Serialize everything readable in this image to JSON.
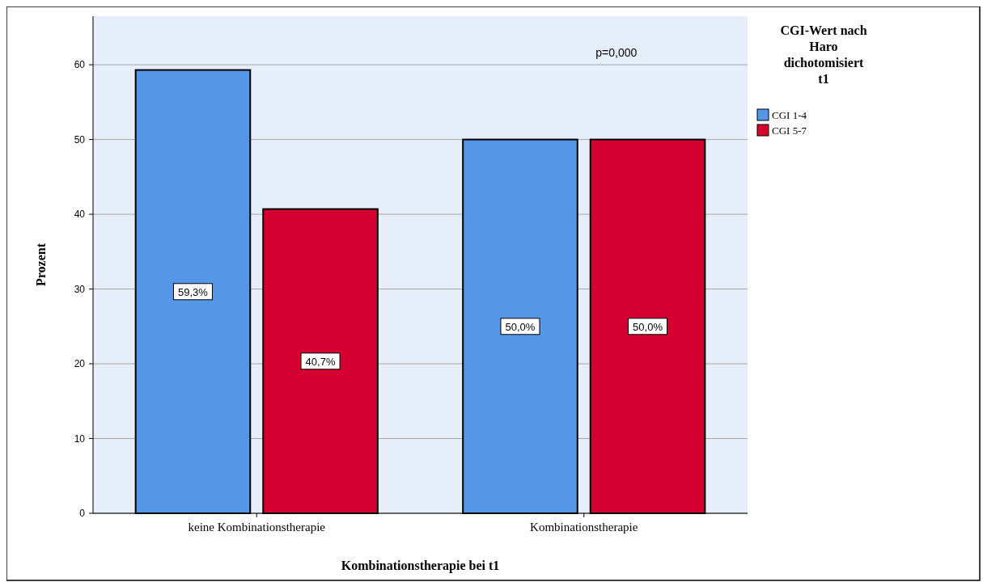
{
  "chart_data": {
    "type": "bar",
    "xlabel": "Kombinationstherapie bei t1",
    "ylabel": "Prozent",
    "legend_title": "CGI-Wert nach Haro dichotomisiert t1",
    "categories": [
      "keine Kombinationstherapie",
      "Kombinationstherapie"
    ],
    "series": [
      {
        "name": "CGI 1-4",
        "color": "#5596e6",
        "values": [
          59.3,
          50.0
        ],
        "value_labels": [
          "59,3%",
          "50,0%"
        ]
      },
      {
        "name": "CGI 5-7",
        "color": "#d5002f",
        "values": [
          40.7,
          50.0
        ],
        "value_labels": [
          "40,7%",
          "50,0%"
        ]
      }
    ],
    "ylim": [
      0,
      66.5
    ],
    "yticks": [
      0,
      10,
      20,
      30,
      40,
      50,
      60
    ],
    "grid": "y",
    "legend": "top right",
    "annotations": [
      "p=0,000"
    ]
  }
}
